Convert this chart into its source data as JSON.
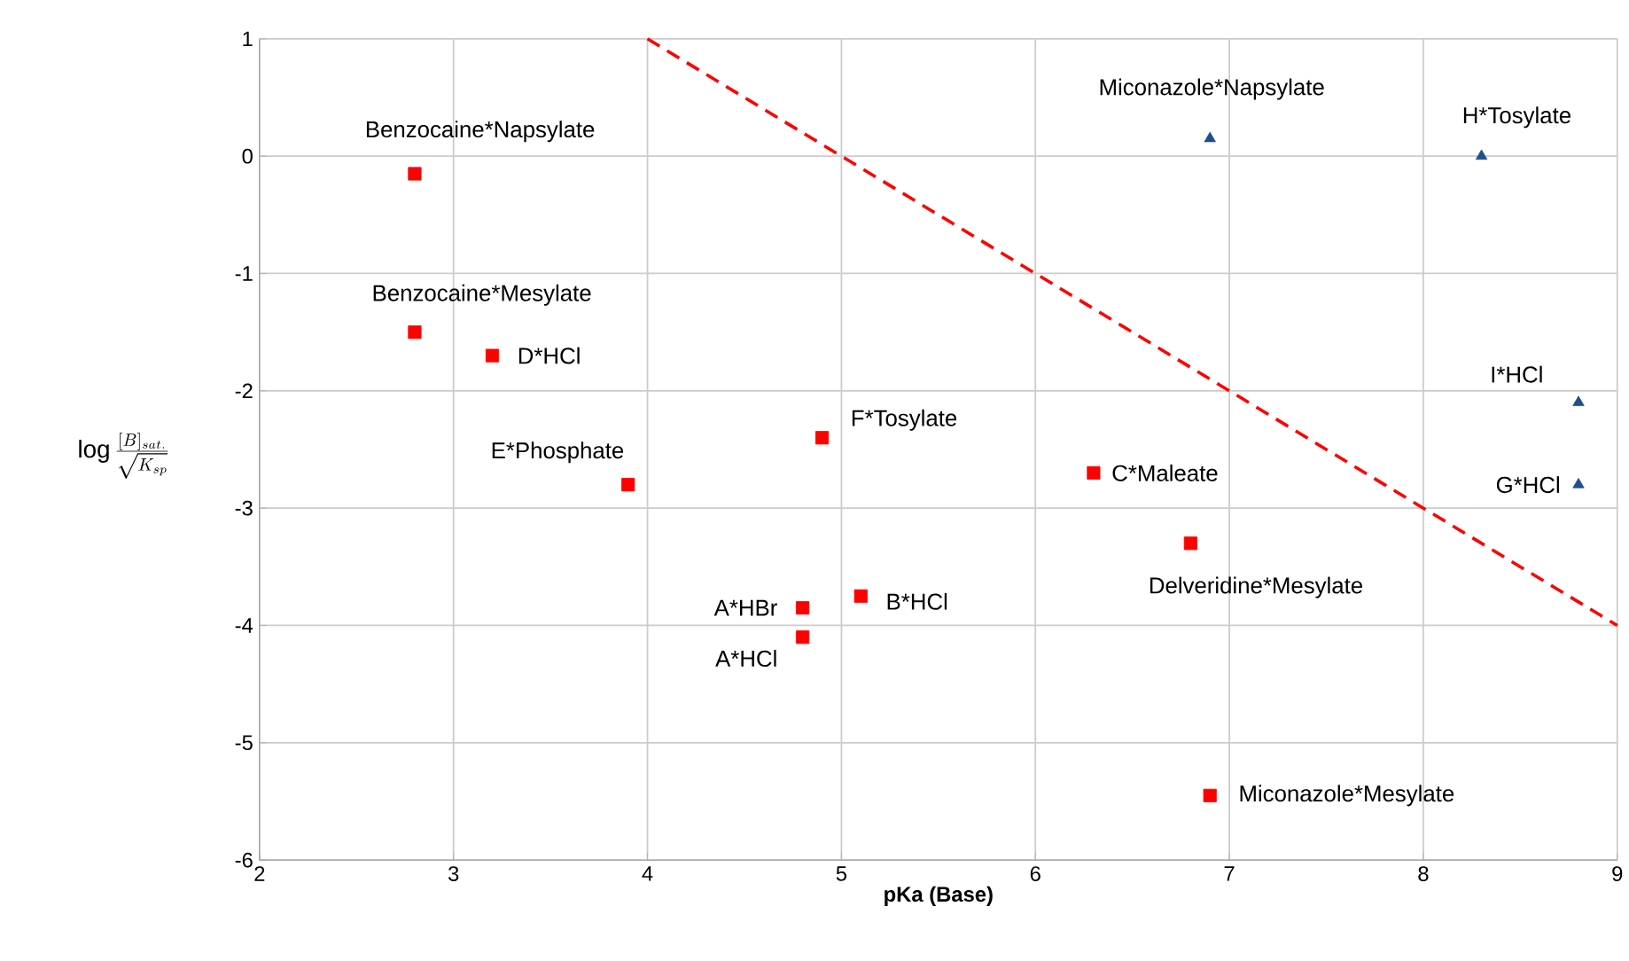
{
  "chart_data": {
    "type": "scatter",
    "xlabel": "pKa (Base)",
    "ylabel": "\\log \\frac{[B]_{sat.}}{\\sqrt{K_{sp}}}",
    "xlim": [
      2,
      9
    ],
    "ylim": [
      -6,
      1
    ],
    "xticks": [
      2,
      3,
      4,
      5,
      6,
      7,
      8,
      9
    ],
    "yticks": [
      -6,
      -5,
      -4,
      -3,
      -2,
      -1,
      0,
      1
    ],
    "grid": true,
    "series": [
      {
        "color": "#ff0000",
        "marker": "square",
        "x": [
          2.8,
          2.8,
          3.2,
          3.9,
          4.9,
          4.8,
          4.8,
          5.1,
          6.3,
          6.8,
          6.9
        ],
        "values": [
          -0.15,
          -1.5,
          -1.7,
          -2.8,
          -2.4,
          -3.85,
          -4.1,
          -3.75,
          -2.7,
          -3.3,
          -5.45
        ]
      },
      {
        "color": "#1f4e8c",
        "marker": "triangle",
        "x": [
          6.9,
          8.3,
          8.8,
          8.8
        ],
        "values": [
          0.15,
          0,
          -2.1,
          -2.8
        ]
      },
      {
        "type": "line",
        "color": "#ff0000",
        "line_style": "dashed",
        "marker": "none",
        "x": [
          4,
          9
        ],
        "values": [
          1,
          -4
        ]
      }
    ],
    "annotations": [
      {
        "text": "Benzocaine*Napsylate",
        "x": 2.8,
        "y": -0.15
      },
      {
        "text": "Benzocaine*Mesylate",
        "x": 2.8,
        "y": -1.5
      },
      {
        "text": "D*HCl",
        "x": 3.2,
        "y": -1.7
      },
      {
        "text": "E*Phosphate",
        "x": 3.9,
        "y": -2.8
      },
      {
        "text": "F*Tosylate",
        "x": 4.9,
        "y": -2.4
      },
      {
        "text": "A*HBr",
        "x": 4.8,
        "y": -3.85
      },
      {
        "text": "A*HCl",
        "x": 4.8,
        "y": -4.1
      },
      {
        "text": "B*HCl",
        "x": 5.1,
        "y": -3.75
      },
      {
        "text": "C*Maleate",
        "x": 6.3,
        "y": -2.7
      },
      {
        "text": "Delveridine*Mesylate",
        "x": 6.8,
        "y": -3.3
      },
      {
        "text": "Miconazole*Mesylate",
        "x": 6.9,
        "y": -5.45
      },
      {
        "text": "Miconazole*Napsylate",
        "x": 6.9,
        "y": 0.15
      },
      {
        "text": "H*Tosylate",
        "x": 8.3,
        "y": 0
      },
      {
        "text": "I*HCl",
        "x": 8.8,
        "y": -2.1
      },
      {
        "text": "G*HCl",
        "x": 8.8,
        "y": -2.8
      }
    ]
  }
}
